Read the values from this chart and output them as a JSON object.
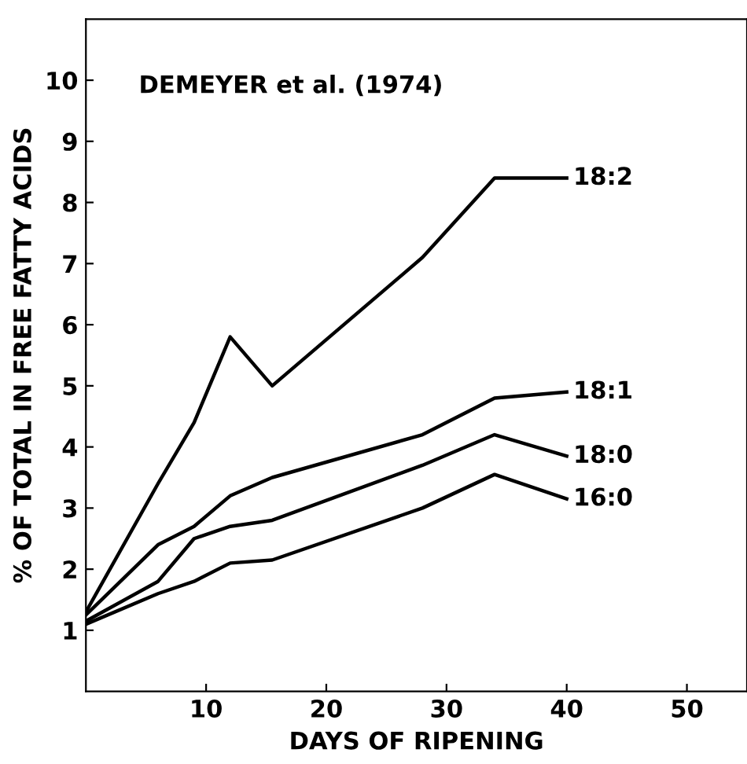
{
  "chart_data": {
    "type": "line",
    "xlabel": "DAYS OF RIPENING",
    "ylabel": "% OF TOTAL IN FREE FATTY ACIDS",
    "annotations": [
      "DEMEYER et al. (1974)"
    ],
    "xlim": [
      0,
      55
    ],
    "ylim": [
      0,
      11
    ],
    "xticks": [
      10,
      20,
      30,
      40,
      50
    ],
    "yticks": [
      1,
      2,
      3,
      4,
      5,
      6,
      7,
      8,
      9,
      10
    ],
    "grid": false,
    "legend": false,
    "marker": "none",
    "line_style": "solid",
    "x": [
      0,
      6,
      9,
      12,
      15.5,
      28,
      34,
      40
    ],
    "series": [
      {
        "name": "18:2",
        "color": "#000000",
        "values": [
          1.3,
          3.4,
          4.4,
          5.8,
          5.0,
          7.1,
          8.4,
          8.4
        ]
      },
      {
        "name": "18:1",
        "color": "#000000",
        "values": [
          1.25,
          2.4,
          2.7,
          3.2,
          3.5,
          4.2,
          4.8,
          4.9
        ]
      },
      {
        "name": "18:0",
        "color": "#000000",
        "values": [
          1.15,
          1.8,
          2.5,
          2.7,
          2.8,
          3.7,
          4.2,
          3.85
        ]
      },
      {
        "name": "16:0",
        "color": "#000000",
        "values": [
          1.1,
          1.6,
          1.8,
          2.1,
          2.15,
          3.0,
          3.55,
          3.15
        ]
      }
    ]
  }
}
